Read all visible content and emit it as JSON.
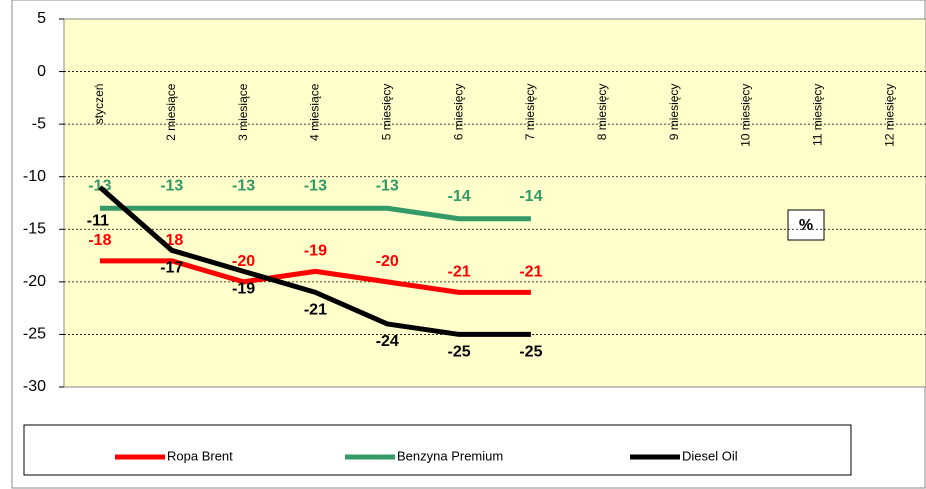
{
  "chart_data": {
    "type": "line",
    "categories": [
      "styczeń",
      "2 miesiące",
      "3 miesiące",
      "4 miesiące",
      "5 miesięcy",
      "6 miesięcy",
      "7 miesięcy",
      "8 miesięcy",
      "9 miesięcy",
      "10 miesięcy",
      "11 miesięcy",
      "12 miesięcy"
    ],
    "series": [
      {
        "name": "Ropa Brent",
        "color": "#ff0000",
        "values": [
          -18,
          -18,
          -20,
          -19,
          -20,
          -21,
          -21,
          null,
          null,
          null,
          null,
          null
        ]
      },
      {
        "name": "Benzyna Premium",
        "color": "#339966",
        "values": [
          -13,
          -13,
          -13,
          -13,
          -13,
          -14,
          -14,
          null,
          null,
          null,
          null,
          null
        ]
      },
      {
        "name": "Diesel Oil",
        "color": "#000000",
        "values": [
          -11,
          -17,
          -19,
          -21,
          -24,
          -25,
          -25,
          null,
          null,
          null,
          null,
          null
        ]
      }
    ],
    "ylim": [
      -30,
      5
    ],
    "yticks": [
      5,
      0,
      -5,
      -10,
      -15,
      -20,
      -25,
      -30
    ],
    "grid": true,
    "annotation": "%",
    "legend": "bottom"
  }
}
